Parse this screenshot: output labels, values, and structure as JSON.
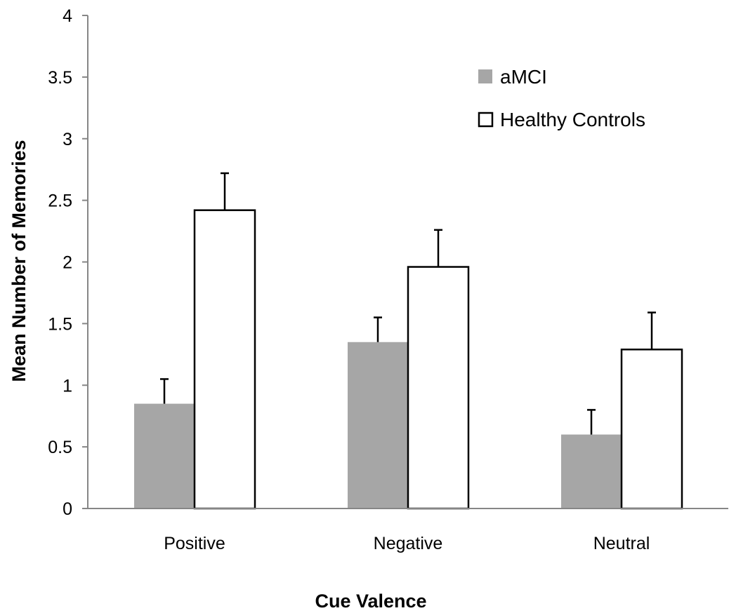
{
  "chart_data": {
    "type": "bar",
    "title": "",
    "xlabel": "Cue Valence",
    "ylabel": "Mean Number of Memories",
    "categories": [
      "Positive",
      "Negative",
      "Neutral"
    ],
    "series": [
      {
        "name": "aMCI",
        "values": [
          0.85,
          1.35,
          0.6
        ],
        "error": [
          0.2,
          0.2,
          0.2
        ],
        "color": "#a6a6a6"
      },
      {
        "name": "Healthy Controls",
        "values": [
          2.42,
          1.96,
          1.29
        ],
        "error": [
          0.3,
          0.3,
          0.3
        ],
        "color": "#ffffff"
      }
    ],
    "ylim": [
      0,
      4
    ],
    "yticks": [
      "0",
      "0.5",
      "1",
      "1.5",
      "2",
      "2.5",
      "3",
      "3.5",
      "4"
    ],
    "grid": false,
    "legend_position": "top-right"
  }
}
